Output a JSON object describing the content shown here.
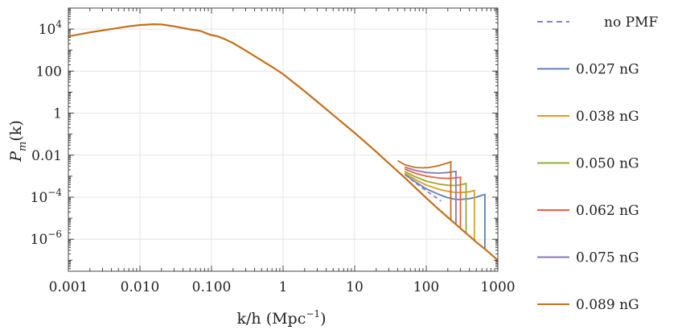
{
  "chart_data": {
    "type": "line",
    "xlabel": "k/h (Mpc",
    "xlabel_sup": "−1",
    "xlabel_close": ")",
    "ylabel_main": "P",
    "ylabel_sub": "m",
    "ylabel_tail": "(k)",
    "x_scale": "log",
    "y_scale": "log",
    "xlim": [
      0.001,
      1000
    ],
    "ylim": [
      3e-08,
      100000
    ],
    "grid": true,
    "legend_position": "right",
    "x_ticks": [
      {
        "value": 0.001,
        "label": "0.001"
      },
      {
        "value": 0.01,
        "label": "0.010"
      },
      {
        "value": 0.1,
        "label": "0.100"
      },
      {
        "value": 1,
        "label": "1"
      },
      {
        "value": 10,
        "label": "10"
      },
      {
        "value": 100,
        "label": "100"
      },
      {
        "value": 1000,
        "label": "1000"
      }
    ],
    "y_ticks": [
      {
        "value": 10000,
        "base": "10",
        "exp": "4"
      },
      {
        "value": 100,
        "base": "100",
        "exp": ""
      },
      {
        "value": 1,
        "base": "1",
        "exp": ""
      },
      {
        "value": 0.01,
        "base": "0.01",
        "exp": ""
      },
      {
        "value": 0.0001,
        "base": "10",
        "exp": "−4"
      },
      {
        "value": 1e-06,
        "base": "10",
        "exp": "−6"
      }
    ],
    "base_curve": {
      "x": [
        0.001,
        0.002,
        0.004,
        0.007,
        0.01,
        0.015,
        0.02,
        0.03,
        0.05,
        0.07,
        0.09,
        0.1,
        0.12,
        0.15,
        0.2,
        0.3,
        0.5,
        0.7,
        1,
        2,
        3,
        5,
        10,
        20,
        30,
        50,
        70,
        100,
        150,
        200,
        300,
        500,
        700,
        1000
      ],
      "y": [
        4500,
        7000,
        10000,
        13500,
        15500,
        17000,
        16500,
        13500,
        9700,
        8200,
        5800,
        5200,
        4600,
        3400,
        2150,
        950,
        320,
        160,
        72,
        11,
        3.5,
        0.82,
        0.115,
        0.0145,
        0.0041,
        0.00085,
        0.00029,
        9.2e-05,
        2.6e-05,
        1.1e-05,
        3.3e-06,
        7.3e-07,
        2.9e-07,
        1e-07
      ]
    },
    "series": [
      {
        "name": "no PMF",
        "color": "#8b7fc0",
        "dashed": true,
        "x": [
          60,
          80,
          100,
          130,
          160
        ],
        "y": [
          0.00075,
          0.00035,
          0.0002,
          0.00011,
          6.5e-05
        ]
      },
      {
        "name": "0.027 nG",
        "color": "#5e81b5",
        "dashed": false,
        "x": [
          50,
          70,
          100,
          150,
          200,
          250,
          300,
          400,
          500,
          600,
          660
        ],
        "y": [
          0.0012,
          0.00055,
          0.00025,
          0.000135,
          9.5e-05,
          8e-05,
          7.8e-05,
          8.5e-05,
          0.0001,
          0.000125,
          0.000135
        ],
        "drop_x": 660
      },
      {
        "name": "0.038 nG",
        "color": "#e19c24",
        "dashed": false,
        "x": [
          50,
          70,
          100,
          150,
          200,
          250,
          300,
          400,
          470
        ],
        "y": [
          0.0014,
          0.0007,
          0.00038,
          0.00024,
          0.00019,
          0.00017,
          0.000165,
          0.00018,
          0.00021
        ],
        "drop_x": 470
      },
      {
        "name": "0.050 nG",
        "color": "#8fb032",
        "dashed": false,
        "x": [
          50,
          70,
          100,
          150,
          200,
          250,
          300,
          360
        ],
        "y": [
          0.0017,
          0.00095,
          0.00058,
          0.00042,
          0.00037,
          0.00036,
          0.00039,
          0.00045
        ],
        "drop_x": 360
      },
      {
        "name": "0.062 nG",
        "color": "#eb6235",
        "dashed": false,
        "x": [
          50,
          70,
          100,
          150,
          200,
          250,
          300
        ],
        "y": [
          0.0022,
          0.0014,
          0.001,
          0.00082,
          0.00078,
          0.00082,
          0.0009
        ],
        "drop_x": 300
      },
      {
        "name": "0.075 nG",
        "color": "#8778b3",
        "dashed": false,
        "x": [
          50,
          70,
          100,
          150,
          200,
          260
        ],
        "y": [
          0.0027,
          0.0019,
          0.0015,
          0.0014,
          0.0015,
          0.0017
        ],
        "drop_x": 260
      },
      {
        "name": "0.089 nG",
        "color": "#c56e1a",
        "dashed": false,
        "x": [
          40,
          50,
          70,
          90,
          110,
          150,
          200,
          220
        ],
        "y": [
          0.0055,
          0.0035,
          0.0026,
          0.0025,
          0.0026,
          0.0032,
          0.0043,
          0.0048
        ],
        "drop_x": 220
      }
    ]
  }
}
